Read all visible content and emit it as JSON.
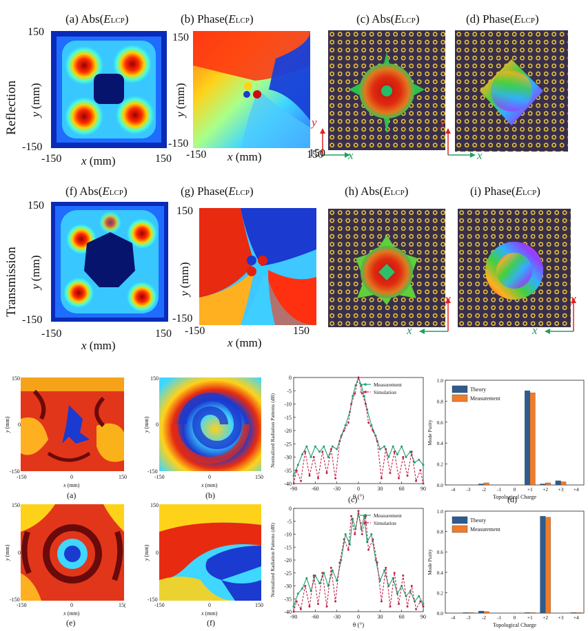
{
  "top_rows": {
    "row_labels": [
      "Reflection",
      "Transmission"
    ],
    "titles": {
      "a": {
        "prefix": "(a) Abs(",
        "var": "E",
        "sub": "LCP",
        "suffix": ")"
      },
      "b": {
        "prefix": "(b) Phase(",
        "var": "E",
        "sub": "LCP",
        "suffix": ")"
      },
      "c": {
        "prefix": "(c) Abs(",
        "var": "E",
        "sub": "LCP",
        "suffix": ")"
      },
      "d": {
        "prefix": "(d) Phase(",
        "var": "E",
        "sub": "LCP",
        "suffix": ")"
      },
      "f": {
        "prefix": "(f) Abs(",
        "var": "E",
        "sub": "LCP",
        "suffix": ")"
      },
      "g": {
        "prefix": "(g) Phase(",
        "var": "E",
        "sub": "LCP",
        "suffix": ")"
      },
      "h": {
        "prefix": "(h) Abs(",
        "var": "E",
        "sub": "LCP",
        "suffix": ")"
      },
      "i": {
        "prefix": "(i) Phase(",
        "var": "E",
        "sub": "LCP",
        "suffix": ")"
      }
    },
    "ticks": {
      "min": "-150",
      "max": "150"
    },
    "x_label": {
      "var": "x",
      "unit": " (mm)"
    },
    "y_label": {
      "var": "y",
      "unit": " (mm)"
    },
    "axis_arrows": {
      "x": "x",
      "y": "y"
    }
  },
  "bottom_rows": {
    "map_ticks": {
      "min": "-150",
      "mid": "0",
      "max": "150",
      "max_clipped": "15("
    },
    "map_xlabel": {
      "var": "x",
      "unit": " (mm)"
    },
    "map_ylabel": {
      "var": "y",
      "unit": " (mm)"
    },
    "captions": [
      "(a)",
      "(b)",
      "(c)",
      "(d)",
      "(e)",
      "(f)"
    ]
  },
  "chart_data": [
    {
      "type": "line",
      "caption": "(c)",
      "xlabel": "θ (°)",
      "ylabel": "Normalized Radiation Patterns (dB)",
      "xlim": [
        -90,
        90
      ],
      "ylim": [
        -40,
        0
      ],
      "xticks": [
        -90,
        -60,
        -30,
        0,
        30,
        60,
        90
      ],
      "yticks": [
        0,
        -5,
        -10,
        -15,
        -20,
        -25,
        -30,
        -35,
        -40
      ],
      "series": [
        {
          "name": "Measurement",
          "color": "#1f9e6e",
          "x": [
            -90,
            -84,
            -78,
            -72,
            -66,
            -60,
            -54,
            -48,
            -42,
            -36,
            -30,
            -24,
            -18,
            -12,
            -8,
            -4,
            0,
            4,
            8,
            12,
            18,
            24,
            30,
            36,
            42,
            48,
            54,
            60,
            66,
            72,
            78,
            84,
            90
          ],
          "y": [
            -37,
            -33,
            -29,
            -26,
            -30,
            -26,
            -28,
            -26,
            -30,
            -26,
            -27,
            -22,
            -18,
            -13,
            -7,
            -3,
            0,
            -3,
            -7,
            -12,
            -18,
            -22,
            -27,
            -26,
            -30,
            -26,
            -29,
            -26,
            -30,
            -28,
            -32,
            -31,
            -33
          ]
        },
        {
          "name": "Simulation",
          "color": "#c0224a",
          "x": [
            -90,
            -86,
            -80,
            -74,
            -68,
            -62,
            -56,
            -50,
            -44,
            -38,
            -32,
            -26,
            -20,
            -14,
            -10,
            -5,
            0,
            5,
            10,
            14,
            20,
            26,
            32,
            38,
            44,
            50,
            56,
            62,
            68,
            74,
            80,
            86,
            90
          ],
          "y": [
            -40,
            -35,
            -39,
            -28,
            -37,
            -30,
            -38,
            -28,
            -36,
            -27,
            -38,
            -24,
            -20,
            -17,
            -10,
            -6,
            0,
            -6,
            -10,
            -17,
            -20,
            -24,
            -38,
            -27,
            -36,
            -28,
            -38,
            -30,
            -37,
            -28,
            -39,
            -35,
            -40
          ]
        }
      ]
    },
    {
      "type": "bar",
      "caption": "(d)",
      "xlabel": "Topological Charge",
      "ylabel": "Mode Purity",
      "categories": [
        "-4",
        "-3",
        "-2",
        "-1",
        "0",
        "+1",
        "+2",
        "+3",
        "+4"
      ],
      "ylim": [
        0,
        1.0
      ],
      "yticks": [
        "0.0",
        "0.2",
        "0.4",
        "0.6",
        "0.8",
        "1.0"
      ],
      "series": [
        {
          "name": "Theory",
          "color": "#2f5c8f",
          "values": [
            0,
            0,
            0.01,
            0,
            0,
            0.9,
            0.01,
            0.04,
            0
          ]
        },
        {
          "name": "Measurement",
          "color": "#f07c2a",
          "values": [
            0,
            0,
            0.02,
            0,
            0,
            0.88,
            0.02,
            0.03,
            0
          ]
        }
      ]
    },
    {
      "type": "line",
      "caption": "",
      "xlabel": "θ (°)",
      "ylabel": "Normalized Radiation Patterns (dB)",
      "xlim": [
        -90,
        90
      ],
      "ylim": [
        -40,
        0
      ],
      "xticks": [
        -90,
        -60,
        -30,
        0,
        30,
        60,
        90
      ],
      "yticks": [
        0,
        -5,
        -10,
        -15,
        -20,
        -25,
        -30,
        -35,
        -40
      ],
      "series": [
        {
          "name": "Measurement",
          "color": "#1f9e6e",
          "x": [
            -90,
            -84,
            -78,
            -72,
            -66,
            -60,
            -54,
            -48,
            -42,
            -36,
            -30,
            -24,
            -18,
            -12,
            -8,
            -4,
            0,
            4,
            8,
            12,
            18,
            24,
            30,
            36,
            42,
            48,
            54,
            60,
            66,
            72,
            78,
            84,
            90
          ],
          "y": [
            -38,
            -33,
            -31,
            -27,
            -32,
            -26,
            -29,
            -25,
            -30,
            -24,
            -28,
            -20,
            -10,
            -14,
            -4,
            -8,
            -2,
            -8,
            -3,
            -13,
            -10,
            -20,
            -28,
            -24,
            -30,
            -27,
            -33,
            -30,
            -34,
            -32,
            -36,
            -34,
            -37
          ]
        },
        {
          "name": "Simulation",
          "color": "#c0224a",
          "x": [
            -90,
            -86,
            -80,
            -74,
            -68,
            -62,
            -56,
            -50,
            -44,
            -38,
            -32,
            -26,
            -20,
            -14,
            -10,
            -5,
            0,
            5,
            10,
            14,
            20,
            26,
            32,
            38,
            44,
            50,
            56,
            62,
            68,
            74,
            80,
            86,
            90
          ],
          "y": [
            -40,
            -36,
            -39,
            -30,
            -38,
            -26,
            -37,
            -25,
            -38,
            -23,
            -36,
            -21,
            -12,
            -16,
            -3,
            -10,
            -1,
            -10,
            -3,
            -16,
            -12,
            -21,
            -36,
            -23,
            -38,
            -25,
            -37,
            -26,
            -38,
            -30,
            -39,
            -36,
            -38
          ]
        }
      ]
    },
    {
      "type": "bar",
      "caption": "",
      "xlabel": "Topological Charge",
      "ylabel": "Mode Purity",
      "categories": [
        "-4",
        "-3",
        "-2",
        "-1",
        "0",
        "+1",
        "+2",
        "+3",
        "+4"
      ],
      "ylim": [
        0,
        1.0
      ],
      "yticks": [
        "0.0",
        "0.2",
        "0.4",
        "0.6",
        "0.8",
        "1.0"
      ],
      "series": [
        {
          "name": "Theory",
          "color": "#2f5c8f",
          "values": [
            0,
            0.005,
            0.02,
            0,
            0,
            0.005,
            0.95,
            0,
            0.005
          ]
        },
        {
          "name": "Measurement",
          "color": "#f07c2a",
          "values": [
            0,
            0.005,
            0.015,
            0,
            0,
            0.005,
            0.94,
            0,
            0.005
          ]
        }
      ]
    }
  ]
}
